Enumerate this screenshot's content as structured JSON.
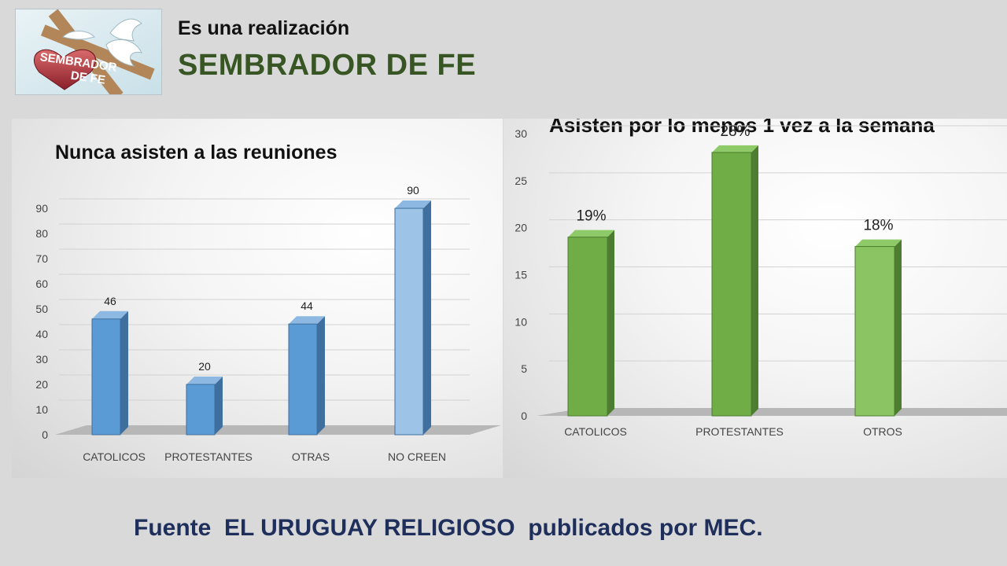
{
  "header": {
    "subtitle": "Es una realización",
    "title": "SEMBRADOR DE FE"
  },
  "logo": {
    "text_line1": "SEMBRADOR",
    "text_line2": "DE FE"
  },
  "colors": {
    "title_green": "#375623",
    "footer_navy": "#1f2f5c",
    "bar_blue": "#5b9bd5",
    "bar_blue_light": "#9dc3e6",
    "bar_green": "#70ad47",
    "bar_green_light": "#8bc462"
  },
  "chart_data": [
    {
      "type": "bar",
      "title": "Nunca asisten a las reuniones",
      "categories": [
        "CATOLICOS",
        "PROTESTANTES",
        "OTRAS",
        "NO CREEN"
      ],
      "values": [
        46,
        20,
        44,
        90
      ],
      "data_labels": [
        "46",
        "20",
        "44",
        "90"
      ],
      "ylim": [
        0,
        90
      ],
      "yticks": [
        0,
        10,
        20,
        30,
        40,
        50,
        60,
        70,
        80,
        90
      ],
      "grid": true,
      "style": "3d-column"
    },
    {
      "type": "bar",
      "title": "Asisten por lo menos 1 vez a la semana",
      "categories": [
        "CATOLICOS",
        "PROTESTANTES",
        "OTROS"
      ],
      "values": [
        19,
        28,
        18
      ],
      "data_labels": [
        "19%",
        "28%",
        "18%"
      ],
      "ylim": [
        0,
        30
      ],
      "yticks": [
        0,
        5,
        10,
        15,
        20,
        25,
        30
      ],
      "grid": true,
      "style": "3d-column"
    }
  ],
  "footer": {
    "text": "Fuente  EL URUGUAY RELIGIOSO  publicados por MEC."
  }
}
